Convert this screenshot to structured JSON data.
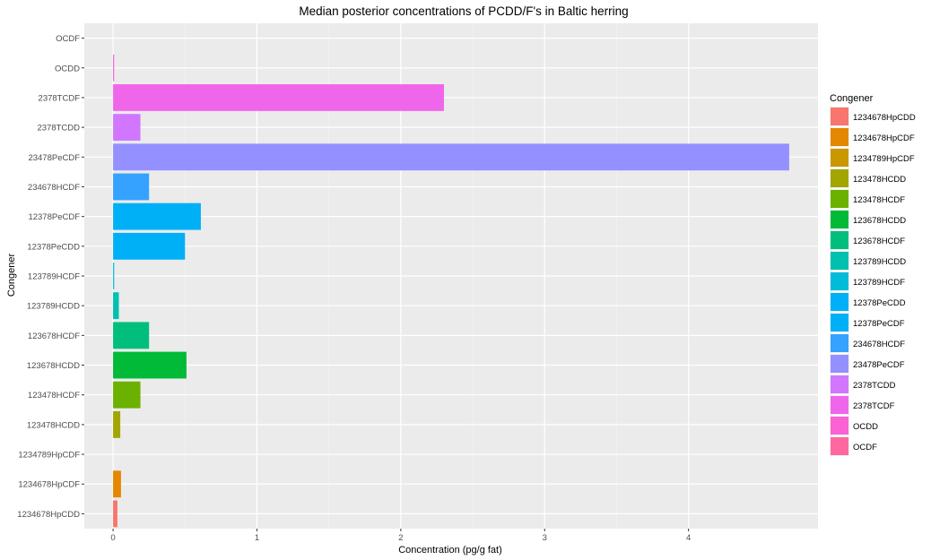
{
  "chart_data": {
    "type": "bar",
    "orientation": "horizontal",
    "title": "Median posterior concentrations of PCDD/F's in Baltic herring",
    "xlabel": "Concentration (pg/g fat)",
    "ylabel": "Congener",
    "xlim": [
      -0.2,
      4.9
    ],
    "x_ticks": [
      0,
      1,
      2,
      3,
      4
    ],
    "grid": true,
    "legend": {
      "title": "Congener",
      "position": "right"
    },
    "categories": [
      "1234678HpCDD",
      "1234678HpCDF",
      "1234789HpCDF",
      "123478HCDD",
      "123478HCDF",
      "123678HCDD",
      "123678HCDF",
      "123789HCDD",
      "123789HCDF",
      "12378PeCDD",
      "12378PeCDF",
      "234678HCDF",
      "23478PeCDF",
      "2378TCDD",
      "2378TCDF",
      "OCDD",
      "OCDF"
    ],
    "values": [
      0.03,
      0.055,
      0,
      0.05,
      0.19,
      0.51,
      0.25,
      0.04,
      0.004,
      0.5,
      0.61,
      0.25,
      4.7,
      0.19,
      2.3,
      0.006,
      0
    ],
    "colors": [
      "#F8766D",
      "#E58700",
      "#C99800",
      "#A3A500",
      "#6BB100",
      "#00BA38",
      "#00BF7D",
      "#00C0AF",
      "#00BCD8",
      "#00B0F6",
      "#00B0F6",
      "#35A2FF",
      "#9590FF",
      "#D177FF",
      "#F066EA",
      "#FC61D5",
      "#FF689F"
    ],
    "legend_entries": [
      {
        "label": "1234678HpCDD",
        "color": "#F8766D"
      },
      {
        "label": "1234678HpCDF",
        "color": "#E58700"
      },
      {
        "label": "1234789HpCDF",
        "color": "#C99800"
      },
      {
        "label": "123478HCDD",
        "color": "#A3A500"
      },
      {
        "label": "123478HCDF",
        "color": "#6BB100"
      },
      {
        "label": "123678HCDD",
        "color": "#00BA38"
      },
      {
        "label": "123678HCDF",
        "color": "#00BF7D"
      },
      {
        "label": "123789HCDD",
        "color": "#00C0AF"
      },
      {
        "label": "123789HCDF",
        "color": "#00BCD8"
      },
      {
        "label": "12378PeCDD",
        "color": "#00B0F6"
      },
      {
        "label": "12378PeCDF",
        "color": "#00B0F6"
      },
      {
        "label": "234678HCDF",
        "color": "#35A2FF"
      },
      {
        "label": "23478PeCDF",
        "color": "#9590FF"
      },
      {
        "label": "2378TCDD",
        "color": "#D177FF"
      },
      {
        "label": "2378TCDF",
        "color": "#F066EA"
      },
      {
        "label": "OCDD",
        "color": "#FC61D5"
      },
      {
        "label": "OCDF",
        "color": "#FF689F"
      }
    ]
  }
}
